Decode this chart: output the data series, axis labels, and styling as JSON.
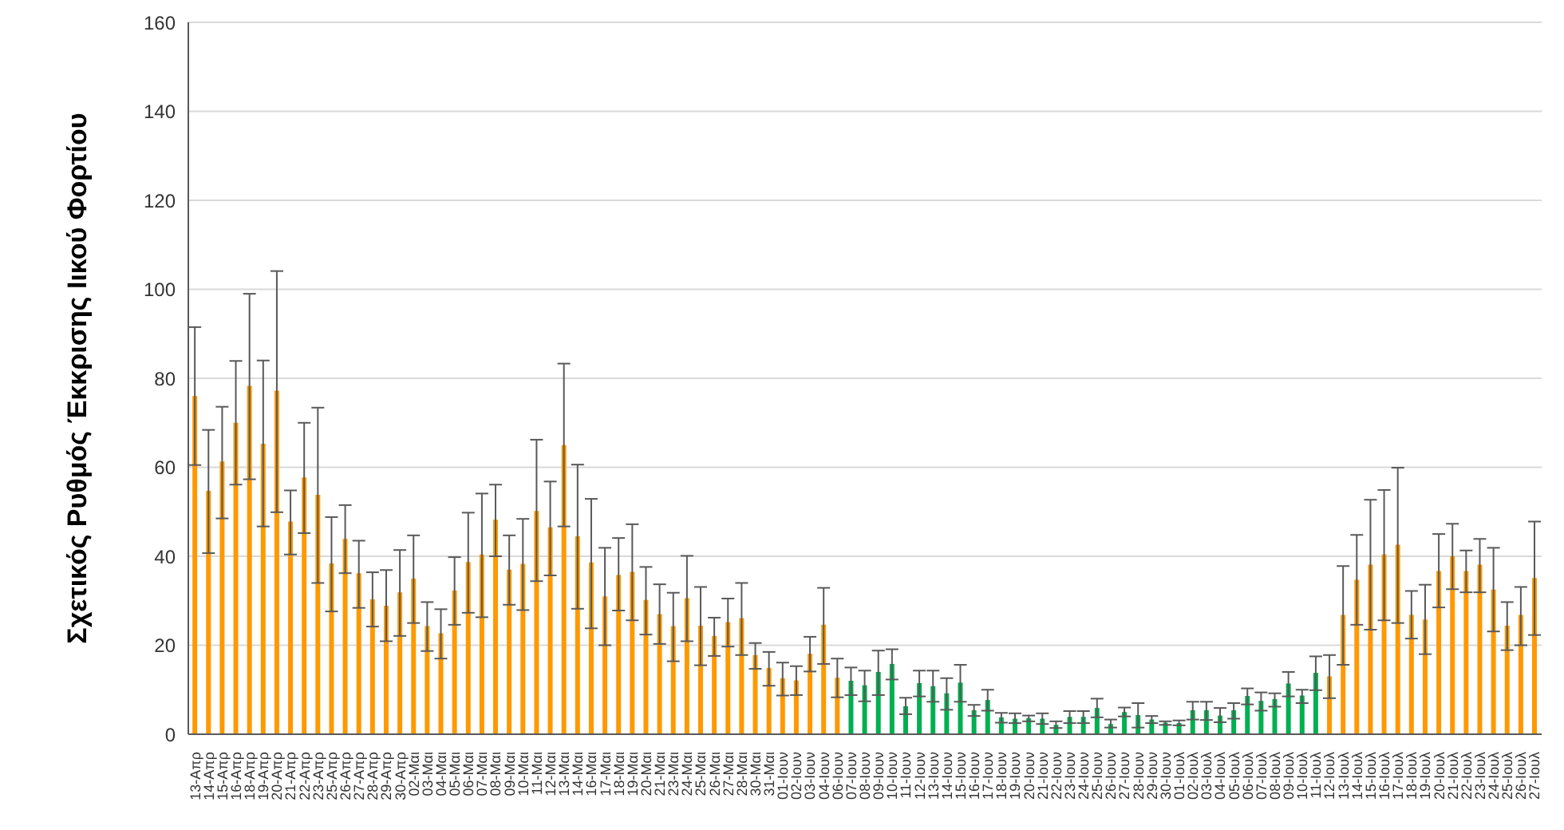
{
  "chart_data": {
    "type": "bar",
    "ylabel": "Σχετικός Ρυθμός Έκκρισης Ιικού Φορτίου",
    "categories": [
      "13-Απρ",
      "14-Απρ",
      "15-Απρ",
      "16-Απρ",
      "18-Απρ",
      "19-Απρ",
      "20-Απρ",
      "21-Απρ",
      "22-Απρ",
      "23-Απρ",
      "25-Απρ",
      "26-Απρ",
      "27-Απρ",
      "28-Απρ",
      "29-Απρ",
      "30-Απρ",
      "02-Μαι",
      "03-Μαι",
      "04-Μαι",
      "05-Μαι",
      "06-Μαι",
      "07-Μαι",
      "08-Μαι",
      "09-Μαι",
      "10-Μαι",
      "11-Μαι",
      "12-Μαι",
      "13-Μαι",
      "14-Μαι",
      "16-Μαι",
      "17-Μαι",
      "18-Μαι",
      "19-Μαι",
      "20-Μαι",
      "21-Μαι",
      "23-Μαι",
      "24-Μαι",
      "25-Μαι",
      "26-Μαι",
      "27-Μαι",
      "28-Μαι",
      "30-Μαι",
      "31-Μαι",
      "01-Ιουν",
      "02-Ιουν",
      "03-Ιουν",
      "04-Ιουν",
      "06-Ιουν",
      "07-Ιουν",
      "08-Ιουν",
      "09-Ιουν",
      "10-Ιουν",
      "11-Ιουν",
      "12-Ιουν",
      "13-Ιουν",
      "14-Ιουν",
      "15-Ιουν",
      "16-Ιουν",
      "17-Ιουν",
      "18-Ιουν",
      "19-Ιουν",
      "20-Ιουν",
      "21-Ιουν",
      "22-Ιουν",
      "23-Ιουν",
      "24-Ιουν",
      "25-Ιουν",
      "26-Ιουν",
      "27-Ιουν",
      "28-Ιουν",
      "29-Ιουν",
      "30-Ιουν",
      "01-Ιουλ",
      "02-Ιουλ",
      "03-Ιουλ",
      "04-Ιουλ",
      "05-Ιουλ",
      "06-Ιουλ",
      "07-Ιουλ",
      "08-Ιουλ",
      "09-Ιουλ",
      "10-Ιουλ",
      "11-Ιουλ",
      "12-Ιουλ",
      "13-Ιουλ",
      "14-Ιουλ",
      "15-Ιουλ",
      "16-Ιουλ",
      "17-Ιουλ",
      "18-Ιουλ",
      "19-Ιουλ",
      "20-Ιουλ",
      "21-Ιουλ",
      "22-Ιουλ",
      "23-Ιουλ",
      "24-Ιουλ",
      "25-Ιουλ",
      "26-Ιουλ",
      "27-Ιουλ"
    ],
    "values": [
      76,
      54.7,
      61.3,
      70,
      78.3,
      65.3,
      77.2,
      47.8,
      57.7,
      53.8,
      38.4,
      43.9,
      36.2,
      30.3,
      28.9,
      31.9,
      35,
      24.3,
      22.7,
      32.3,
      38.7,
      40.4,
      48.2,
      37,
      38.3,
      50.2,
      46.5,
      65,
      44.5,
      38.6,
      31,
      35.8,
      36.5,
      30.2,
      27,
      24.3,
      30.6,
      24.4,
      22.1,
      25.2,
      26.1,
      17.8,
      14.9,
      12.6,
      12.1,
      18.1,
      24.6,
      12.7,
      12,
      11,
      14,
      15.8,
      6.3,
      11.5,
      10.8,
      9.2,
      11.6,
      5.4,
      7.7,
      3.8,
      3.5,
      3.6,
      3.5,
      2.1,
      3.9,
      3.9,
      5.9,
      2.3,
      5,
      4.3,
      3.3,
      2.6,
      2.5,
      5.4,
      5.4,
      4.2,
      5.4,
      8.6,
      7.5,
      7.9,
      11.4,
      8.7,
      13.8,
      13,
      26.8,
      34.7,
      38.1,
      40.4,
      42.6,
      26.8,
      25.8,
      36.7,
      40,
      36.7,
      38.1,
      32.5,
      24.4,
      26.8,
      35.1
    ],
    "errors": [
      [
        60.5,
        91.5
      ],
      [
        40.7,
        68.4
      ],
      [
        48.5,
        73.6
      ],
      [
        56.1,
        83.9
      ],
      [
        57.3,
        99
      ],
      [
        46.7,
        84
      ],
      [
        49.9,
        104.1
      ],
      [
        40.4,
        54.8
      ],
      [
        45.2,
        70
      ],
      [
        34,
        73.4
      ],
      [
        27.6,
        48.8
      ],
      [
        36.2,
        51.5
      ],
      [
        28.4,
        43.5
      ],
      [
        24.2,
        36.4
      ],
      [
        20.9,
        36.9
      ],
      [
        22.1,
        41.4
      ],
      [
        25,
        44.7
      ],
      [
        18.7,
        29.7
      ],
      [
        17,
        28.1
      ],
      [
        24.6,
        39.8
      ],
      [
        27.3,
        49.8
      ],
      [
        26.3,
        54.1
      ],
      [
        40,
        56.1
      ],
      [
        29.1,
        44.7
      ],
      [
        27.9,
        48.4
      ],
      [
        34.4,
        66.2
      ],
      [
        35.7,
        56.8
      ],
      [
        46.7,
        83.3
      ],
      [
        28.2,
        60.6
      ],
      [
        23.8,
        52.9
      ],
      [
        20,
        41.9
      ],
      [
        27.8,
        44.1
      ],
      [
        25.6,
        47.2
      ],
      [
        22.4,
        37.6
      ],
      [
        20.3,
        33.7
      ],
      [
        16.4,
        31.8
      ],
      [
        20.9,
        40.1
      ],
      [
        15.5,
        33.1
      ],
      [
        17.6,
        26.2
      ],
      [
        19.7,
        30.5
      ],
      [
        17.8,
        34
      ],
      [
        14.7,
        20.5
      ],
      [
        10.9,
        18.5
      ],
      [
        8.7,
        16.1
      ],
      [
        8.8,
        15.3
      ],
      [
        14.1,
        21.9
      ],
      [
        15.8,
        32.9
      ],
      [
        8.3,
        17
      ],
      [
        8.8,
        15
      ],
      [
        7.4,
        14.3
      ],
      [
        8.8,
        18.8
      ],
      [
        12.3,
        19.1
      ],
      [
        4.5,
        8.2
      ],
      [
        8.5,
        14.3
      ],
      [
        7.3,
        14.3
      ],
      [
        5.5,
        12.6
      ],
      [
        7.3,
        15.6
      ],
      [
        4.1,
        6.6
      ],
      [
        5.3,
        10
      ],
      [
        2.6,
        4.8
      ],
      [
        2.5,
        4.7
      ],
      [
        2.9,
        4.2
      ],
      [
        2.3,
        4.7
      ],
      [
        1.4,
        2.9
      ],
      [
        2.5,
        5.2
      ],
      [
        2.5,
        5.2
      ],
      [
        3.8,
        8
      ],
      [
        1.5,
        3.3
      ],
      [
        4,
        6
      ],
      [
        1.5,
        7
      ],
      [
        2.5,
        4.1
      ],
      [
        2.1,
        2.9
      ],
      [
        2,
        3.1
      ],
      [
        3.3,
        7.3
      ],
      [
        3.2,
        7.3
      ],
      [
        2.7,
        5.9
      ],
      [
        3.5,
        7
      ],
      [
        6.7,
        10.3
      ],
      [
        5.3,
        9.4
      ],
      [
        6.2,
        9.2
      ],
      [
        8.5,
        14
      ],
      [
        7,
        10
      ],
      [
        9.9,
        17.5
      ],
      [
        8.1,
        17.8
      ],
      [
        15.6,
        37.8
      ],
      [
        24.6,
        44.8
      ],
      [
        23.5,
        52.7
      ],
      [
        25.6,
        54.9
      ],
      [
        25,
        59.9
      ],
      [
        21.5,
        32.2
      ],
      [
        18,
        33.6
      ],
      [
        28.5,
        45
      ],
      [
        32.6,
        47.3
      ],
      [
        31.9,
        41.3
      ],
      [
        31.9,
        43.9
      ],
      [
        23.1,
        41.9
      ],
      [
        18.9,
        29.7
      ],
      [
        20,
        33.1
      ],
      [
        22.3,
        47.8
      ]
    ],
    "colors": [
      "#ff9900",
      "#ff9900",
      "#ff9900",
      "#ff9900",
      "#ff9900",
      "#ff9900",
      "#ff9900",
      "#ff9900",
      "#ff9900",
      "#ff9900",
      "#ff9900",
      "#ff9900",
      "#ff9900",
      "#ff9900",
      "#ff9900",
      "#ff9900",
      "#ff9900",
      "#ff9900",
      "#ff9900",
      "#ff9900",
      "#ff9900",
      "#ff9900",
      "#ff9900",
      "#ff9900",
      "#ff9900",
      "#ff9900",
      "#ff9900",
      "#ff9900",
      "#ff9900",
      "#ff9900",
      "#ff9900",
      "#ff9900",
      "#ff9900",
      "#ff9900",
      "#ff9900",
      "#ff9900",
      "#ff9900",
      "#ff9900",
      "#ff9900",
      "#ff9900",
      "#ff9900",
      "#ff9900",
      "#ff9900",
      "#ff9900",
      "#ff9900",
      "#ff9900",
      "#ff9900",
      "#ff9900",
      "#00b050",
      "#00b050",
      "#00b050",
      "#00b050",
      "#00b050",
      "#00b050",
      "#00b050",
      "#00b050",
      "#00b050",
      "#00b050",
      "#00b050",
      "#00b050",
      "#00b050",
      "#00b050",
      "#00b050",
      "#00b050",
      "#00b050",
      "#00b050",
      "#00b050",
      "#00b050",
      "#00b050",
      "#00b050",
      "#00b050",
      "#00b050",
      "#00b050",
      "#00b050",
      "#00b050",
      "#00b050",
      "#00b050",
      "#00b050",
      "#00b050",
      "#00b050",
      "#00b050",
      "#00b050",
      "#00b050",
      "#ff9900",
      "#ff9900",
      "#ff9900",
      "#ff9900",
      "#ff9900",
      "#ff9900",
      "#ff9900",
      "#ff9900",
      "#ff9900",
      "#ff9900",
      "#ff9900",
      "#ff9900",
      "#ff9900",
      "#ff9900",
      "#ff9900",
      "#ff9900"
    ],
    "ylim": [
      0,
      160
    ],
    "yticks": [
      0,
      20,
      40,
      60,
      80,
      100,
      120,
      140,
      160
    ],
    "grid": "y"
  }
}
